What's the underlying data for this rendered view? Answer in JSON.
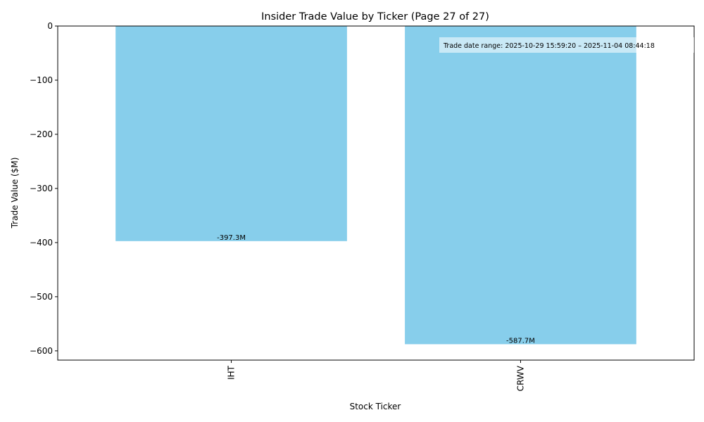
{
  "chart_data": {
    "type": "bar",
    "title": "Insider Trade Value by Ticker (Page 27 of 27)",
    "xlabel": "Stock Ticker",
    "ylabel": "Trade Value ($M)",
    "categories": [
      "IHT",
      "CRWV"
    ],
    "values": [
      -397.3,
      -587.7
    ],
    "data_labels": [
      "-397.3M",
      "-587.7M"
    ],
    "ylim": [
      -617.085,
      0
    ],
    "yticks": [
      0,
      -100,
      -200,
      -300,
      -400,
      -500,
      -600
    ],
    "ytick_labels": [
      "0",
      "−100",
      "−200",
      "−300",
      "−400",
      "−500",
      "−600"
    ],
    "bar_color": "#87ceeb",
    "grid": false,
    "legend": null,
    "annotation": "Trade date range: 2025-10-29 15:59:20 – 2025-11-04 08:44:18"
  }
}
